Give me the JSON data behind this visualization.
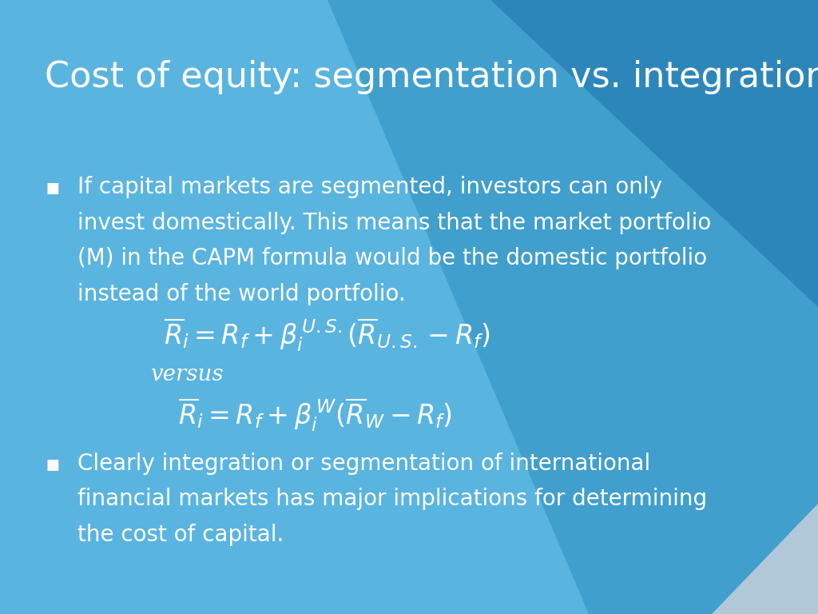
{
  "title": "Cost of equity: segmentation vs. integration",
  "title_color": "#ffffff",
  "title_fontsize": 32,
  "bg_color_light": "#5ab4e0",
  "bg_color_dark": "#1a5a9a",
  "text_color": "#ffffff",
  "bullet1_lines": [
    "If capital markets are segmented, investors can only",
    "invest domestically. This means that the market portfolio",
    "(M) in the CAPM formula would be the domestic portfolio",
    "instead of the world portfolio."
  ],
  "bullet2_lines": [
    "Clearly integration or segmentation of international",
    "financial markets has major implications for determining",
    "the cost of capital."
  ],
  "versus_text": "versus",
  "body_fontsize": 20,
  "formula_fontsize": 24,
  "versus_fontsize": 20,
  "bullet_marker": "▪",
  "dark_shape1_color": "#2e8fbe",
  "dark_shape2_color": "#1a6fa8",
  "bottom_corner_color": "#b0c8d8"
}
